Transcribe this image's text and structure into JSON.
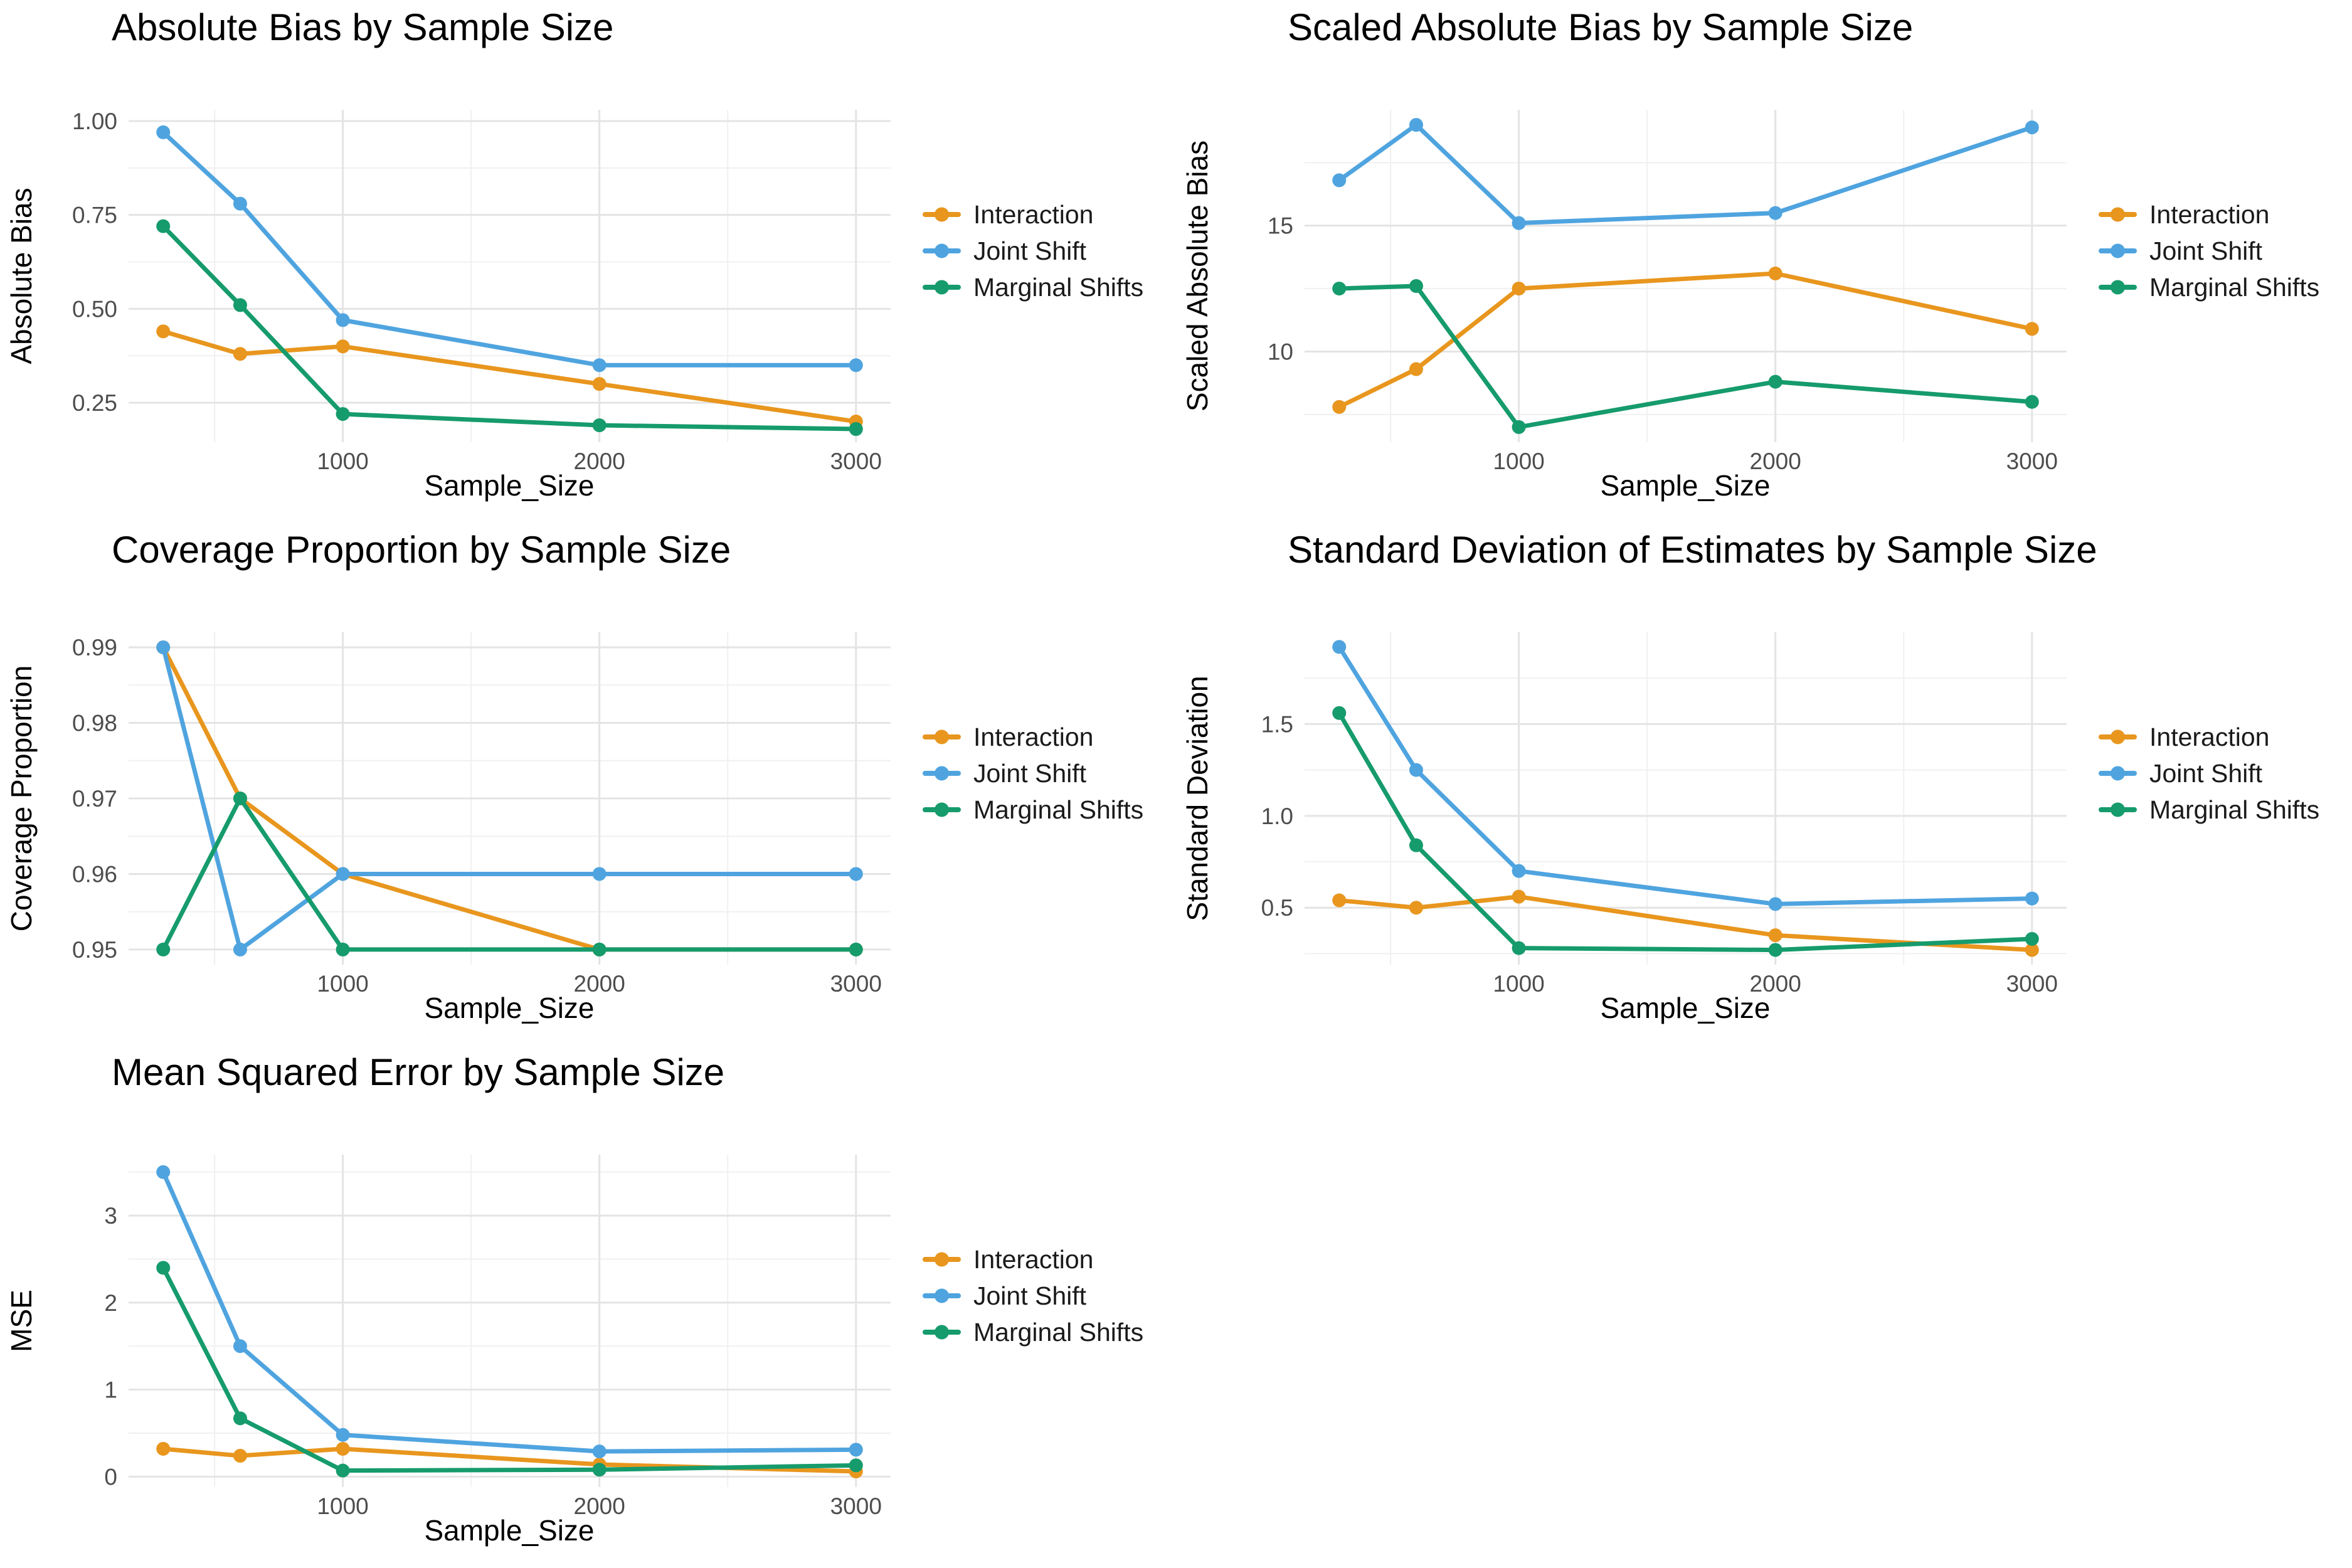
{
  "page": {
    "background": "#FFFFFF",
    "layout": "2x3 grid of line charts, bottom-right cell empty"
  },
  "palette": {
    "interaction": "#E8961E",
    "joint_shift": "#4FA4DF",
    "marginal_shifts": "#169B6C",
    "gridline_major": "#E4E4E4",
    "gridline_minor": "#F0F0F0",
    "tick_text": "#4D4D4D",
    "title_text": "#000000"
  },
  "chart_data": [
    {
      "type": "line",
      "title": "Absolute Bias by Sample Size",
      "xlabel": "Sample_Size",
      "ylabel": "Absolute Bias",
      "grid": true,
      "legend_position": "right",
      "x": [
        300,
        600,
        1000,
        2000,
        3000
      ],
      "x_ticks": [
        1000,
        2000,
        3000
      ],
      "x_minor": [
        500,
        1500,
        2500
      ],
      "xlim": [
        165,
        3135
      ],
      "y_ticks": [
        0.25,
        0.5,
        0.75,
        1.0
      ],
      "y_tick_labels": [
        "0.25",
        "0.50",
        "0.75",
        "1.00"
      ],
      "y_minor": [
        0.375,
        0.625,
        0.875
      ],
      "ylim": [
        0.145,
        1.03
      ],
      "series": [
        {
          "name": "Interaction",
          "color": "#E8961E",
          "values": [
            0.44,
            0.38,
            0.4,
            0.3,
            0.2
          ]
        },
        {
          "name": "Joint Shift",
          "color": "#4FA4DF",
          "values": [
            0.97,
            0.78,
            0.47,
            0.35,
            0.35
          ]
        },
        {
          "name": "Marginal Shifts",
          "color": "#169B6C",
          "values": [
            0.72,
            0.51,
            0.22,
            0.19,
            0.18
          ]
        }
      ]
    },
    {
      "type": "line",
      "title": "Scaled Absolute Bias by Sample Size",
      "xlabel": "Sample_Size",
      "ylabel": "Scaled Absolute Bias",
      "grid": true,
      "legend_position": "right",
      "x": [
        300,
        600,
        1000,
        2000,
        3000
      ],
      "x_ticks": [
        1000,
        2000,
        3000
      ],
      "x_minor": [
        500,
        1500,
        2500
      ],
      "xlim": [
        165,
        3135
      ],
      "y_ticks": [
        10,
        15
      ],
      "y_tick_labels": [
        "10",
        "15"
      ],
      "y_minor": [
        7.5,
        12.5,
        17.5
      ],
      "ylim": [
        6.4,
        19.6
      ],
      "series": [
        {
          "name": "Interaction",
          "color": "#E8961E",
          "values": [
            7.8,
            9.3,
            12.5,
            13.1,
            10.9
          ]
        },
        {
          "name": "Joint Shift",
          "color": "#4FA4DF",
          "values": [
            16.8,
            19.0,
            15.1,
            15.5,
            18.9
          ]
        },
        {
          "name": "Marginal Shifts",
          "color": "#169B6C",
          "values": [
            12.5,
            12.6,
            7.0,
            8.8,
            8.0
          ]
        }
      ]
    },
    {
      "type": "line",
      "title": "Coverage Proportion by Sample Size",
      "xlabel": "Sample_Size",
      "ylabel": "Coverage Proportion",
      "grid": true,
      "legend_position": "right",
      "x": [
        300,
        600,
        1000,
        2000,
        3000
      ],
      "x_ticks": [
        1000,
        2000,
        3000
      ],
      "x_minor": [
        500,
        1500,
        2500
      ],
      "xlim": [
        165,
        3135
      ],
      "y_ticks": [
        0.95,
        0.96,
        0.97,
        0.98,
        0.99
      ],
      "y_tick_labels": [
        "0.95",
        "0.96",
        "0.97",
        "0.98",
        "0.99"
      ],
      "y_minor": [
        0.955,
        0.965,
        0.975,
        0.985
      ],
      "ylim": [
        0.948,
        0.992
      ],
      "series": [
        {
          "name": "Interaction",
          "color": "#E8961E",
          "values": [
            0.99,
            0.97,
            0.96,
            0.95,
            0.95
          ]
        },
        {
          "name": "Joint Shift",
          "color": "#4FA4DF",
          "values": [
            0.99,
            0.95,
            0.96,
            0.96,
            0.96
          ]
        },
        {
          "name": "Marginal Shifts",
          "color": "#169B6C",
          "values": [
            0.95,
            0.97,
            0.95,
            0.95,
            0.95
          ]
        }
      ]
    },
    {
      "type": "line",
      "title": "Standard Deviation of Estimates by Sample Size",
      "xlabel": "Sample_Size",
      "ylabel": "Standard Deviation",
      "grid": true,
      "legend_position": "right",
      "x": [
        300,
        600,
        1000,
        2000,
        3000
      ],
      "x_ticks": [
        1000,
        2000,
        3000
      ],
      "x_minor": [
        500,
        1500,
        2500
      ],
      "xlim": [
        165,
        3135
      ],
      "y_ticks": [
        0.5,
        1.0,
        1.5
      ],
      "y_tick_labels": [
        "0.5",
        "1.0",
        "1.5"
      ],
      "y_minor": [
        0.25,
        0.75,
        1.25,
        1.75
      ],
      "ylim": [
        0.19,
        2.0
      ],
      "series": [
        {
          "name": "Interaction",
          "color": "#E8961E",
          "values": [
            0.54,
            0.5,
            0.56,
            0.35,
            0.27
          ]
        },
        {
          "name": "Joint Shift",
          "color": "#4FA4DF",
          "values": [
            1.92,
            1.25,
            0.7,
            0.52,
            0.55
          ]
        },
        {
          "name": "Marginal Shifts",
          "color": "#169B6C",
          "values": [
            1.56,
            0.84,
            0.28,
            0.27,
            0.33
          ]
        }
      ]
    },
    {
      "type": "line",
      "title": "Mean Squared Error by Sample Size",
      "xlabel": "Sample_Size",
      "ylabel": "MSE",
      "grid": true,
      "legend_position": "right",
      "x": [
        300,
        600,
        1000,
        2000,
        3000
      ],
      "x_ticks": [
        1000,
        2000,
        3000
      ],
      "x_minor": [
        500,
        1500,
        2500
      ],
      "xlim": [
        165,
        3135
      ],
      "y_ticks": [
        0,
        1,
        2,
        3
      ],
      "y_tick_labels": [
        "0",
        "1",
        "2",
        "3"
      ],
      "y_minor": [
        0.5,
        1.5,
        2.5,
        3.5
      ],
      "ylim": [
        -0.12,
        3.7
      ],
      "series": [
        {
          "name": "Interaction",
          "color": "#E8961E",
          "values": [
            0.32,
            0.24,
            0.32,
            0.14,
            0.06
          ]
        },
        {
          "name": "Joint Shift",
          "color": "#4FA4DF",
          "values": [
            3.5,
            1.5,
            0.48,
            0.29,
            0.31
          ]
        },
        {
          "name": "Marginal Shifts",
          "color": "#169B6C",
          "values": [
            2.4,
            0.67,
            0.07,
            0.08,
            0.13
          ]
        }
      ]
    }
  ]
}
